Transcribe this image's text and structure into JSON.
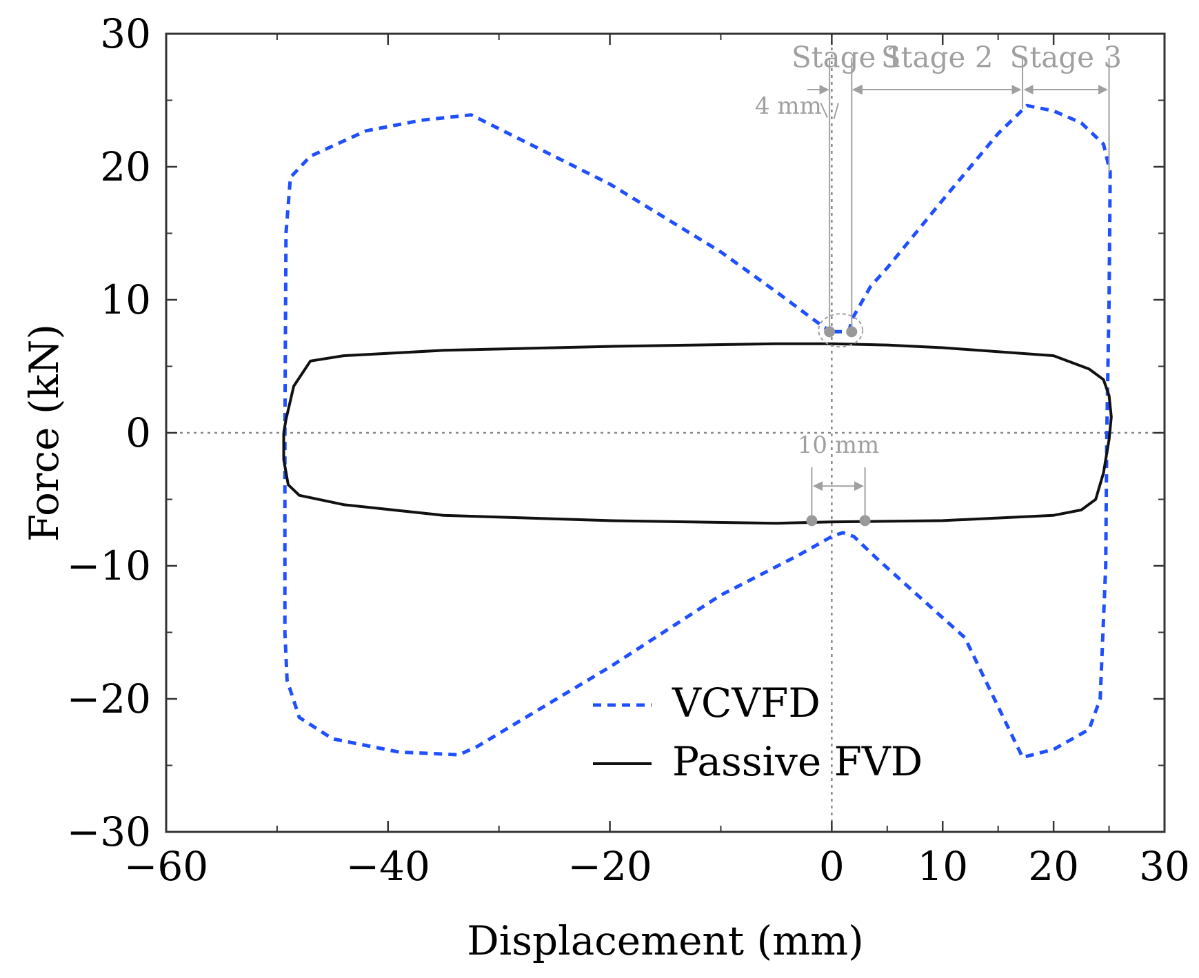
{
  "chart_data": {
    "type": "line",
    "title": "",
    "xlabel": "Displacement (mm)",
    "ylabel": "Force (kN)",
    "xlim": [
      -60,
      30
    ],
    "ylim": [
      -30,
      30
    ],
    "x_ticks": [
      -60,
      -40,
      -20,
      0,
      10,
      20,
      30
    ],
    "x_tick_labels": [
      "−60",
      "−40",
      "−20",
      "0",
      "10",
      "20",
      "30"
    ],
    "x_minor_ticks": [
      -50,
      -30,
      -10,
      5,
      15,
      25
    ],
    "y_ticks": [
      30,
      20,
      10,
      0,
      -10,
      -20,
      -30
    ],
    "y_tick_labels": [
      "30",
      "20",
      "10",
      "0",
      "−10",
      "−20",
      "−30"
    ],
    "y_minor_ticks": [
      25,
      15,
      5,
      -5,
      -15,
      -25
    ],
    "grid": false,
    "legend_position": "bottom-center",
    "colors": {
      "vcvfd": "#1f4fff",
      "passive": "#111111",
      "annotation": "#a0a0a0"
    },
    "series": [
      {
        "name": "VCVFD",
        "style": "dashed",
        "points": [
          [
            0,
            7.6
          ],
          [
            -0.8,
            8
          ],
          [
            -5,
            10.6
          ],
          [
            -10,
            13.6
          ],
          [
            -20,
            18.7
          ],
          [
            -32.5,
            23.9
          ],
          [
            -37,
            23.5
          ],
          [
            -42,
            22.7
          ],
          [
            -47,
            20.8
          ],
          [
            -48.8,
            19.2
          ],
          [
            -49.2,
            15
          ],
          [
            -49.3,
            0
          ],
          [
            -49.3,
            -15
          ],
          [
            -49.1,
            -18.6
          ],
          [
            -48,
            -21.4
          ],
          [
            -45,
            -23
          ],
          [
            -39,
            -24
          ],
          [
            -33.6,
            -24.2
          ],
          [
            -32,
            -23.6
          ],
          [
            -20,
            -17.6
          ],
          [
            -10,
            -12.2
          ],
          [
            -3,
            -9.2
          ],
          [
            0,
            -7.8
          ],
          [
            1,
            -7.5
          ],
          [
            2,
            -7.8
          ],
          [
            4,
            -9.4
          ],
          [
            8,
            -12.4
          ],
          [
            12,
            -15.4
          ],
          [
            17.2,
            -24.4
          ],
          [
            20,
            -23.8
          ],
          [
            23.2,
            -22.3
          ],
          [
            24.2,
            -20
          ],
          [
            24.7,
            -10
          ],
          [
            24.8,
            0
          ],
          [
            25,
            10
          ],
          [
            25.1,
            19.6
          ],
          [
            24.5,
            21.7
          ],
          [
            22.5,
            23.3
          ],
          [
            20,
            24.2
          ],
          [
            17.6,
            24.6
          ],
          [
            15,
            22.5
          ],
          [
            10,
            17.5
          ],
          [
            5,
            12.4
          ],
          [
            3.5,
            11
          ],
          [
            2,
            8.8
          ],
          [
            1.5,
            7.6
          ],
          [
            0,
            7.6
          ]
        ]
      },
      {
        "name": "Passive FVD",
        "style": "solid",
        "points": [
          [
            -49.4,
            0
          ],
          [
            -49.4,
            -2
          ],
          [
            -49,
            -3.9
          ],
          [
            -48,
            -4.7
          ],
          [
            -44,
            -5.4
          ],
          [
            -35,
            -6.2
          ],
          [
            -20,
            -6.6
          ],
          [
            -5,
            -6.8
          ],
          [
            0,
            -6.7
          ],
          [
            10,
            -6.6
          ],
          [
            20,
            -6.2
          ],
          [
            22.5,
            -5.8
          ],
          [
            23.8,
            -5
          ],
          [
            24.5,
            -3
          ],
          [
            25,
            -0.5
          ],
          [
            25.2,
            1.2
          ],
          [
            25,
            2.8
          ],
          [
            24.5,
            4
          ],
          [
            23.2,
            4.8
          ],
          [
            20,
            5.8
          ],
          [
            10,
            6.4
          ],
          [
            5,
            6.6
          ],
          [
            0,
            6.7
          ],
          [
            -5,
            6.7
          ],
          [
            -20,
            6.5
          ],
          [
            -35,
            6.2
          ],
          [
            -44,
            5.8
          ],
          [
            -47,
            5.4
          ],
          [
            -48.5,
            3.5
          ],
          [
            -49.2,
            1
          ],
          [
            -49.4,
            0
          ]
        ]
      }
    ],
    "reference_lines": [
      {
        "orientation": "vertical",
        "value": 0,
        "style": "dotted"
      },
      {
        "orientation": "horizontal",
        "value": 0,
        "style": "dotted"
      }
    ],
    "annotations": {
      "stages": [
        {
          "label": "Stage 1",
          "from": -0.2,
          "to": 1.8
        },
        {
          "label": "Stage 2",
          "from": 1.8,
          "to": 17.2
        },
        {
          "label": "Stage 3",
          "from": 17.2,
          "to": 25
        }
      ],
      "stage_marker_x": [
        -0.2,
        1.8,
        17.2,
        25
      ],
      "stage_marker_top_y": 28.2,
      "stage_arrow_y": 25.8,
      "gap_upper": {
        "label": "4 mm",
        "x_from": -0.2,
        "x_to": 1.8,
        "y": 7.6
      },
      "gap_lower": {
        "label": "10 mm",
        "x_from": -1.8,
        "x_to": 3.0,
        "y": -6.6
      }
    }
  }
}
